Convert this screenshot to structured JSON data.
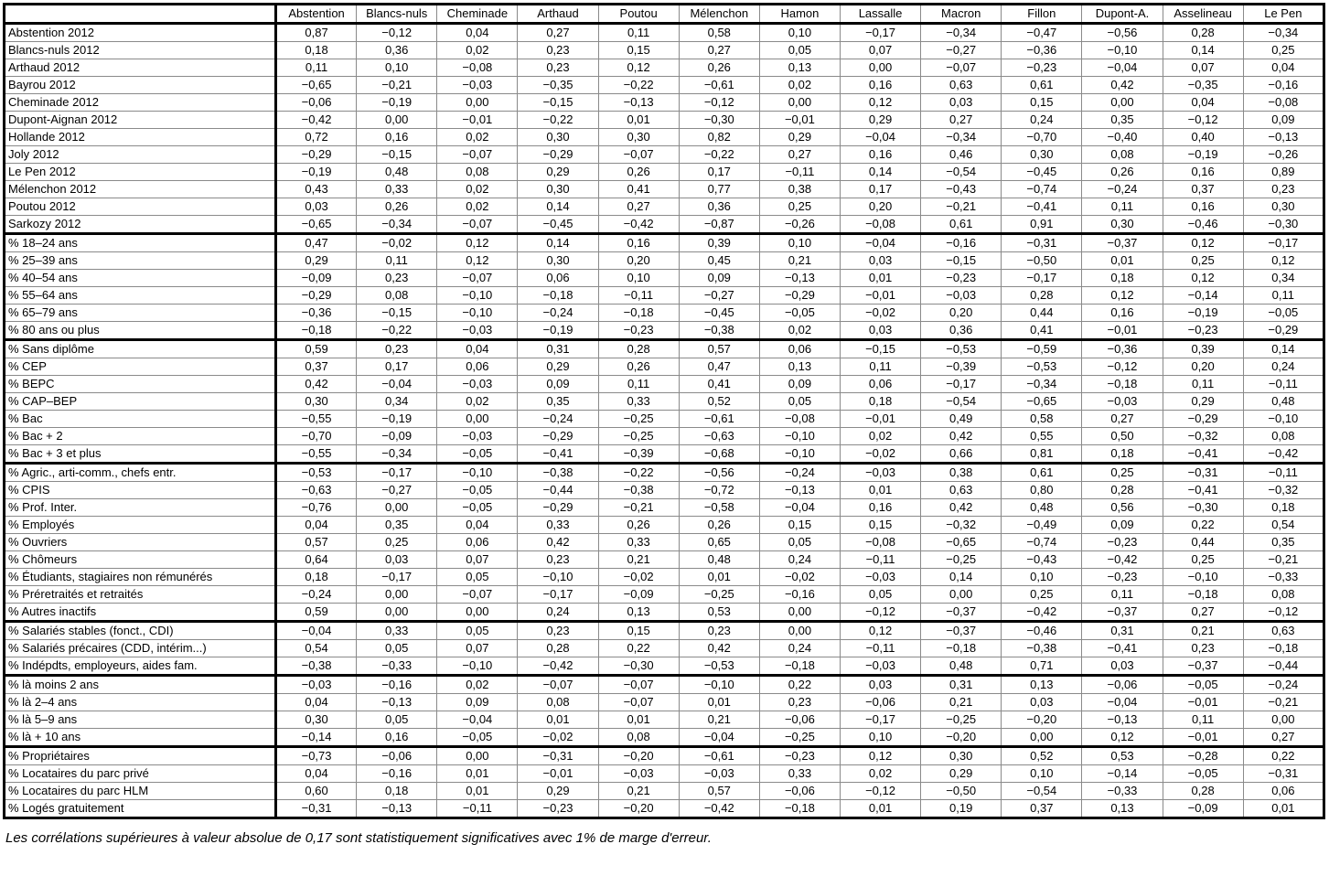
{
  "table": {
    "corner_label": "",
    "columns": [
      "Abstention",
      "Blancs-nuls",
      "Cheminade",
      "Arthaud",
      "Poutou",
      "Mélenchon",
      "Hamon",
      "Lassalle",
      "Macron",
      "Fillon",
      "Dupont-A.",
      "Asselineau",
      "Le Pen"
    ],
    "groups": [
      [
        {
          "label": "Abstention 2012",
          "values": [
            "0,87",
            "−0,12",
            "0,04",
            "0,27",
            "0,11",
            "0,58",
            "0,10",
            "−0,17",
            "−0,34",
            "−0,47",
            "−0,56",
            "0,28",
            "−0,34"
          ]
        },
        {
          "label": "Blancs-nuls 2012",
          "values": [
            "0,18",
            "0,36",
            "0,02",
            "0,23",
            "0,15",
            "0,27",
            "0,05",
            "0,07",
            "−0,27",
            "−0,36",
            "−0,10",
            "0,14",
            "0,25"
          ]
        },
        {
          "label": "Arthaud 2012",
          "values": [
            "0,11",
            "0,10",
            "−0,08",
            "0,23",
            "0,12",
            "0,26",
            "0,13",
            "0,00",
            "−0,07",
            "−0,23",
            "−0,04",
            "0,07",
            "0,04"
          ]
        },
        {
          "label": "Bayrou 2012",
          "values": [
            "−0,65",
            "−0,21",
            "−0,03",
            "−0,35",
            "−0,22",
            "−0,61",
            "0,02",
            "0,16",
            "0,63",
            "0,61",
            "0,42",
            "−0,35",
            "−0,16"
          ]
        },
        {
          "label": "Cheminade 2012",
          "values": [
            "−0,06",
            "−0,19",
            "0,00",
            "−0,15",
            "−0,13",
            "−0,12",
            "0,00",
            "0,12",
            "0,03",
            "0,15",
            "0,00",
            "0,04",
            "−0,08"
          ]
        },
        {
          "label": "Dupont-Aignan 2012",
          "values": [
            "−0,42",
            "0,00",
            "−0,01",
            "−0,22",
            "0,01",
            "−0,30",
            "−0,01",
            "0,29",
            "0,27",
            "0,24",
            "0,35",
            "−0,12",
            "0,09"
          ]
        },
        {
          "label": "Hollande 2012",
          "values": [
            "0,72",
            "0,16",
            "0,02",
            "0,30",
            "0,30",
            "0,82",
            "0,29",
            "−0,04",
            "−0,34",
            "−0,70",
            "−0,40",
            "0,40",
            "−0,13"
          ]
        },
        {
          "label": "Joly 2012",
          "values": [
            "−0,29",
            "−0,15",
            "−0,07",
            "−0,29",
            "−0,07",
            "−0,22",
            "0,27",
            "0,16",
            "0,46",
            "0,30",
            "0,08",
            "−0,19",
            "−0,26"
          ]
        },
        {
          "label": "Le Pen 2012",
          "values": [
            "−0,19",
            "0,48",
            "0,08",
            "0,29",
            "0,26",
            "0,17",
            "−0,11",
            "0,14",
            "−0,54",
            "−0,45",
            "0,26",
            "0,16",
            "0,89"
          ]
        },
        {
          "label": "Mélenchon 2012",
          "values": [
            "0,43",
            "0,33",
            "0,02",
            "0,30",
            "0,41",
            "0,77",
            "0,38",
            "0,17",
            "−0,43",
            "−0,74",
            "−0,24",
            "0,37",
            "0,23"
          ]
        },
        {
          "label": "Poutou 2012",
          "values": [
            "0,03",
            "0,26",
            "0,02",
            "0,14",
            "0,27",
            "0,36",
            "0,25",
            "0,20",
            "−0,21",
            "−0,41",
            "0,11",
            "0,16",
            "0,30"
          ]
        },
        {
          "label": "Sarkozy 2012",
          "values": [
            "−0,65",
            "−0,34",
            "−0,07",
            "−0,45",
            "−0,42",
            "−0,87",
            "−0,26",
            "−0,08",
            "0,61",
            "0,91",
            "0,30",
            "−0,46",
            "−0,30"
          ]
        }
      ],
      [
        {
          "label": "% 18–24 ans",
          "values": [
            "0,47",
            "−0,02",
            "0,12",
            "0,14",
            "0,16",
            "0,39",
            "0,10",
            "−0,04",
            "−0,16",
            "−0,31",
            "−0,37",
            "0,12",
            "−0,17"
          ]
        },
        {
          "label": "% 25–39 ans",
          "values": [
            "0,29",
            "0,11",
            "0,12",
            "0,30",
            "0,20",
            "0,45",
            "0,21",
            "0,03",
            "−0,15",
            "−0,50",
            "0,01",
            "0,25",
            "0,12"
          ]
        },
        {
          "label": "% 40–54 ans",
          "values": [
            "−0,09",
            "0,23",
            "−0,07",
            "0,06",
            "0,10",
            "0,09",
            "−0,13",
            "0,01",
            "−0,23",
            "−0,17",
            "0,18",
            "0,12",
            "0,34"
          ]
        },
        {
          "label": "% 55–64 ans",
          "values": [
            "−0,29",
            "0,08",
            "−0,10",
            "−0,18",
            "−0,11",
            "−0,27",
            "−0,29",
            "−0,01",
            "−0,03",
            "0,28",
            "0,12",
            "−0,14",
            "0,11"
          ]
        },
        {
          "label": "% 65–79 ans",
          "values": [
            "−0,36",
            "−0,15",
            "−0,10",
            "−0,24",
            "−0,18",
            "−0,45",
            "−0,05",
            "−0,02",
            "0,20",
            "0,44",
            "0,16",
            "−0,19",
            "−0,05"
          ]
        },
        {
          "label": "% 80 ans ou plus",
          "values": [
            "−0,18",
            "−0,22",
            "−0,03",
            "−0,19",
            "−0,23",
            "−0,38",
            "0,02",
            "0,03",
            "0,36",
            "0,41",
            "−0,01",
            "−0,23",
            "−0,29"
          ]
        }
      ],
      [
        {
          "label": "% Sans diplôme",
          "values": [
            "0,59",
            "0,23",
            "0,04",
            "0,31",
            "0,28",
            "0,57",
            "0,06",
            "−0,15",
            "−0,53",
            "−0,59",
            "−0,36",
            "0,39",
            "0,14"
          ]
        },
        {
          "label": "% CEP",
          "values": [
            "0,37",
            "0,17",
            "0,06",
            "0,29",
            "0,26",
            "0,47",
            "0,13",
            "0,11",
            "−0,39",
            "−0,53",
            "−0,12",
            "0,20",
            "0,24"
          ]
        },
        {
          "label": "% BEPC",
          "values": [
            "0,42",
            "−0,04",
            "−0,03",
            "0,09",
            "0,11",
            "0,41",
            "0,09",
            "0,06",
            "−0,17",
            "−0,34",
            "−0,18",
            "0,11",
            "−0,11"
          ]
        },
        {
          "label": "% CAP–BEP",
          "values": [
            "0,30",
            "0,34",
            "0,02",
            "0,35",
            "0,33",
            "0,52",
            "0,05",
            "0,18",
            "−0,54",
            "−0,65",
            "−0,03",
            "0,29",
            "0,48"
          ]
        },
        {
          "label": "% Bac",
          "values": [
            "−0,55",
            "−0,19",
            "0,00",
            "−0,24",
            "−0,25",
            "−0,61",
            "−0,08",
            "−0,01",
            "0,49",
            "0,58",
            "0,27",
            "−0,29",
            "−0,10"
          ]
        },
        {
          "label": "% Bac + 2",
          "values": [
            "−0,70",
            "−0,09",
            "−0,03",
            "−0,29",
            "−0,25",
            "−0,63",
            "−0,10",
            "0,02",
            "0,42",
            "0,55",
            "0,50",
            "−0,32",
            "0,08"
          ]
        },
        {
          "label": "% Bac + 3 et plus",
          "values": [
            "−0,55",
            "−0,34",
            "−0,05",
            "−0,41",
            "−0,39",
            "−0,68",
            "−0,10",
            "−0,02",
            "0,66",
            "0,81",
            "0,18",
            "−0,41",
            "−0,42"
          ]
        }
      ],
      [
        {
          "label": "% Agric., arti-comm., chefs entr.",
          "values": [
            "−0,53",
            "−0,17",
            "−0,10",
            "−0,38",
            "−0,22",
            "−0,56",
            "−0,24",
            "−0,03",
            "0,38",
            "0,61",
            "0,25",
            "−0,31",
            "−0,11"
          ]
        },
        {
          "label": "% CPIS",
          "values": [
            "−0,63",
            "−0,27",
            "−0,05",
            "−0,44",
            "−0,38",
            "−0,72",
            "−0,13",
            "0,01",
            "0,63",
            "0,80",
            "0,28",
            "−0,41",
            "−0,32"
          ]
        },
        {
          "label": "% Prof. Inter.",
          "values": [
            "−0,76",
            "0,00",
            "−0,05",
            "−0,29",
            "−0,21",
            "−0,58",
            "−0,04",
            "0,16",
            "0,42",
            "0,48",
            "0,56",
            "−0,30",
            "0,18"
          ]
        },
        {
          "label": "% Employés",
          "values": [
            "0,04",
            "0,35",
            "0,04",
            "0,33",
            "0,26",
            "0,26",
            "0,15",
            "0,15",
            "−0,32",
            "−0,49",
            "0,09",
            "0,22",
            "0,54"
          ]
        },
        {
          "label": "% Ouvriers",
          "values": [
            "0,57",
            "0,25",
            "0,06",
            "0,42",
            "0,33",
            "0,65",
            "0,05",
            "−0,08",
            "−0,65",
            "−0,74",
            "−0,23",
            "0,44",
            "0,35"
          ]
        },
        {
          "label": "% Chômeurs",
          "values": [
            "0,64",
            "0,03",
            "0,07",
            "0,23",
            "0,21",
            "0,48",
            "0,24",
            "−0,11",
            "−0,25",
            "−0,43",
            "−0,42",
            "0,25",
            "−0,21"
          ]
        },
        {
          "label": "% Étudiants, stagiaires non rémunérés",
          "values": [
            "0,18",
            "−0,17",
            "0,05",
            "−0,10",
            "−0,02",
            "0,01",
            "−0,02",
            "−0,03",
            "0,14",
            "0,10",
            "−0,23",
            "−0,10",
            "−0,33"
          ]
        },
        {
          "label": "% Préretraités et retraités",
          "values": [
            "−0,24",
            "0,00",
            "−0,07",
            "−0,17",
            "−0,09",
            "−0,25",
            "−0,16",
            "0,05",
            "0,00",
            "0,25",
            "0,11",
            "−0,18",
            "0,08"
          ]
        },
        {
          "label": "% Autres inactifs",
          "values": [
            "0,59",
            "0,00",
            "0,00",
            "0,24",
            "0,13",
            "0,53",
            "0,00",
            "−0,12",
            "−0,37",
            "−0,42",
            "−0,37",
            "0,27",
            "−0,12"
          ]
        }
      ],
      [
        {
          "label": "% Salariés stables (fonct., CDI)",
          "values": [
            "−0,04",
            "0,33",
            "0,05",
            "0,23",
            "0,15",
            "0,23",
            "0,00",
            "0,12",
            "−0,37",
            "−0,46",
            "0,31",
            "0,21",
            "0,63"
          ]
        },
        {
          "label": "% Salariés précaires (CDD, intérim...)",
          "values": [
            "0,54",
            "0,05",
            "0,07",
            "0,28",
            "0,22",
            "0,42",
            "0,24",
            "−0,11",
            "−0,18",
            "−0,38",
            "−0,41",
            "0,23",
            "−0,18"
          ]
        },
        {
          "label": "% Indépdts, employeurs, aides fam.",
          "values": [
            "−0,38",
            "−0,33",
            "−0,10",
            "−0,42",
            "−0,30",
            "−0,53",
            "−0,18",
            "−0,03",
            "0,48",
            "0,71",
            "0,03",
            "−0,37",
            "−0,44"
          ]
        }
      ],
      [
        {
          "label": "% là moins 2 ans",
          "values": [
            "−0,03",
            "−0,16",
            "0,02",
            "−0,07",
            "−0,07",
            "−0,10",
            "0,22",
            "0,03",
            "0,31",
            "0,13",
            "−0,06",
            "−0,05",
            "−0,24"
          ]
        },
        {
          "label": "% là 2–4 ans",
          "values": [
            "0,04",
            "−0,13",
            "0,09",
            "0,08",
            "−0,07",
            "0,01",
            "0,23",
            "−0,06",
            "0,21",
            "0,03",
            "−0,04",
            "−0,01",
            "−0,21"
          ]
        },
        {
          "label": "% là 5–9 ans",
          "values": [
            "0,30",
            "0,05",
            "−0,04",
            "0,01",
            "0,01",
            "0,21",
            "−0,06",
            "−0,17",
            "−0,25",
            "−0,20",
            "−0,13",
            "0,11",
            "0,00"
          ]
        },
        {
          "label": "% là + 10 ans",
          "values": [
            "−0,14",
            "0,16",
            "−0,05",
            "−0,02",
            "0,08",
            "−0,04",
            "−0,25",
            "0,10",
            "−0,20",
            "0,00",
            "0,12",
            "−0,01",
            "0,27"
          ]
        }
      ],
      [
        {
          "label": "% Propriétaires",
          "values": [
            "−0,73",
            "−0,06",
            "0,00",
            "−0,31",
            "−0,20",
            "−0,61",
            "−0,23",
            "0,12",
            "0,30",
            "0,52",
            "0,53",
            "−0,28",
            "0,22"
          ]
        },
        {
          "label": "% Locataires du parc privé",
          "values": [
            "0,04",
            "−0,16",
            "0,01",
            "−0,01",
            "−0,03",
            "−0,03",
            "0,33",
            "0,02",
            "0,29",
            "0,10",
            "−0,14",
            "−0,05",
            "−0,31"
          ]
        },
        {
          "label": "% Locataires du parc HLM",
          "values": [
            "0,60",
            "0,18",
            "0,01",
            "0,29",
            "0,21",
            "0,57",
            "−0,06",
            "−0,12",
            "−0,50",
            "−0,54",
            "−0,33",
            "0,28",
            "0,06"
          ]
        },
        {
          "label": "% Logés gratuitement",
          "values": [
            "−0,31",
            "−0,13",
            "−0,11",
            "−0,23",
            "−0,20",
            "−0,42",
            "−0,18",
            "0,01",
            "0,19",
            "0,37",
            "0,13",
            "−0,09",
            "0,01"
          ]
        }
      ]
    ]
  },
  "footnote": "Les corrélations supérieures à valeur absolue de 0,17 sont statistiquement significatives avec 1% de marge d'erreur.",
  "colors": {
    "background": "#ffffff",
    "text": "#000000",
    "grid_thin": "#8a8a8a",
    "grid_thick": "#000000"
  }
}
